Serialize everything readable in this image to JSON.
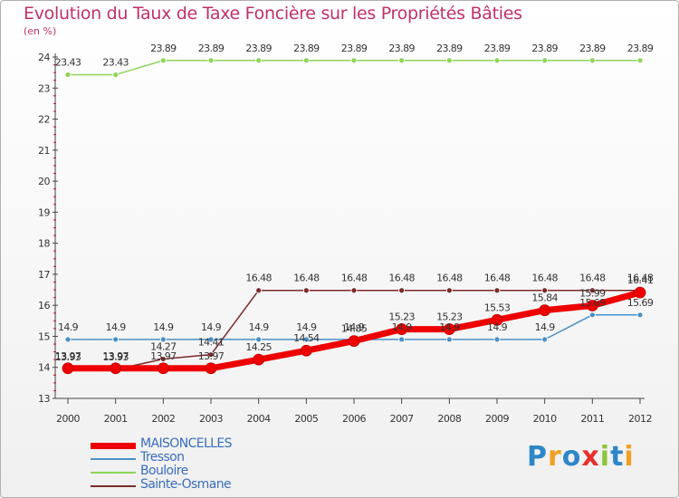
{
  "chart_data": {
    "type": "line",
    "title": "Evolution du Taux de Taxe Foncière sur les Propriétés Bâties",
    "ylabel": "(en %)",
    "xlabel": "",
    "ylim": [
      13,
      24
    ],
    "yticks": [
      13,
      14,
      15,
      16,
      17,
      18,
      19,
      20,
      21,
      22,
      23,
      24
    ],
    "categories": [
      "2000",
      "2001",
      "2002",
      "2003",
      "2004",
      "2005",
      "2006",
      "2007",
      "2008",
      "2009",
      "2010",
      "2011",
      "2012"
    ],
    "series": [
      {
        "name": "MAISONCELLES",
        "color": "#ee0000",
        "values": [
          13.97,
          13.97,
          13.97,
          13.97,
          14.25,
          14.54,
          14.85,
          15.23,
          15.23,
          15.53,
          15.84,
          15.99,
          16.41
        ],
        "labels": [
          "13.97",
          "13.97",
          "13.97",
          "13.97",
          "14.25",
          "14.54",
          "14.85",
          "15.23",
          "15.23",
          "15.53",
          "15.84",
          "15.99",
          "16.41"
        ]
      },
      {
        "name": "Tresson",
        "color": "#4a90c8",
        "values": [
          14.9,
          14.9,
          14.9,
          14.9,
          14.9,
          14.9,
          14.9,
          14.9,
          14.9,
          14.9,
          14.9,
          15.69,
          15.69
        ],
        "labels": [
          "14.9",
          "14.9",
          "14.9",
          "14.9",
          "14.9",
          "14.9",
          "14.9",
          "14.9",
          "14.9",
          "14.9",
          "14.9",
          "15.69",
          "15.69"
        ]
      },
      {
        "name": "Bouloire",
        "color": "#8fd45a",
        "values": [
          23.43,
          23.43,
          23.89,
          23.89,
          23.89,
          23.89,
          23.89,
          23.89,
          23.89,
          23.89,
          23.89,
          23.89,
          23.89
        ],
        "labels": [
          "23.43",
          "23.43",
          "23.89",
          "23.89",
          "23.89",
          "23.89",
          "23.89",
          "23.89",
          "23.89",
          "23.89",
          "23.89",
          "23.89",
          "23.89"
        ]
      },
      {
        "name": "Sainte-Osmane",
        "color": "#7a2a2a",
        "values": [
          13.93,
          13.93,
          14.27,
          14.41,
          16.48,
          16.48,
          16.48,
          16.48,
          16.48,
          16.48,
          16.48,
          16.48,
          16.48
        ],
        "labels": [
          "13.93",
          "13.93",
          "14.27",
          "14.41",
          "16.48",
          "16.48",
          "16.48",
          "16.48",
          "16.48",
          "16.48",
          "16.48",
          "16.48",
          "16.48"
        ]
      }
    ]
  },
  "logo": {
    "letters": [
      "P",
      "r",
      "o",
      "x",
      "i",
      "t",
      "i"
    ],
    "colors": [
      "#2e86c8",
      "#f0a020",
      "#2e86c8",
      "#e8302a",
      "#8cc63e",
      "#2e86c8",
      "#f0a020"
    ]
  }
}
